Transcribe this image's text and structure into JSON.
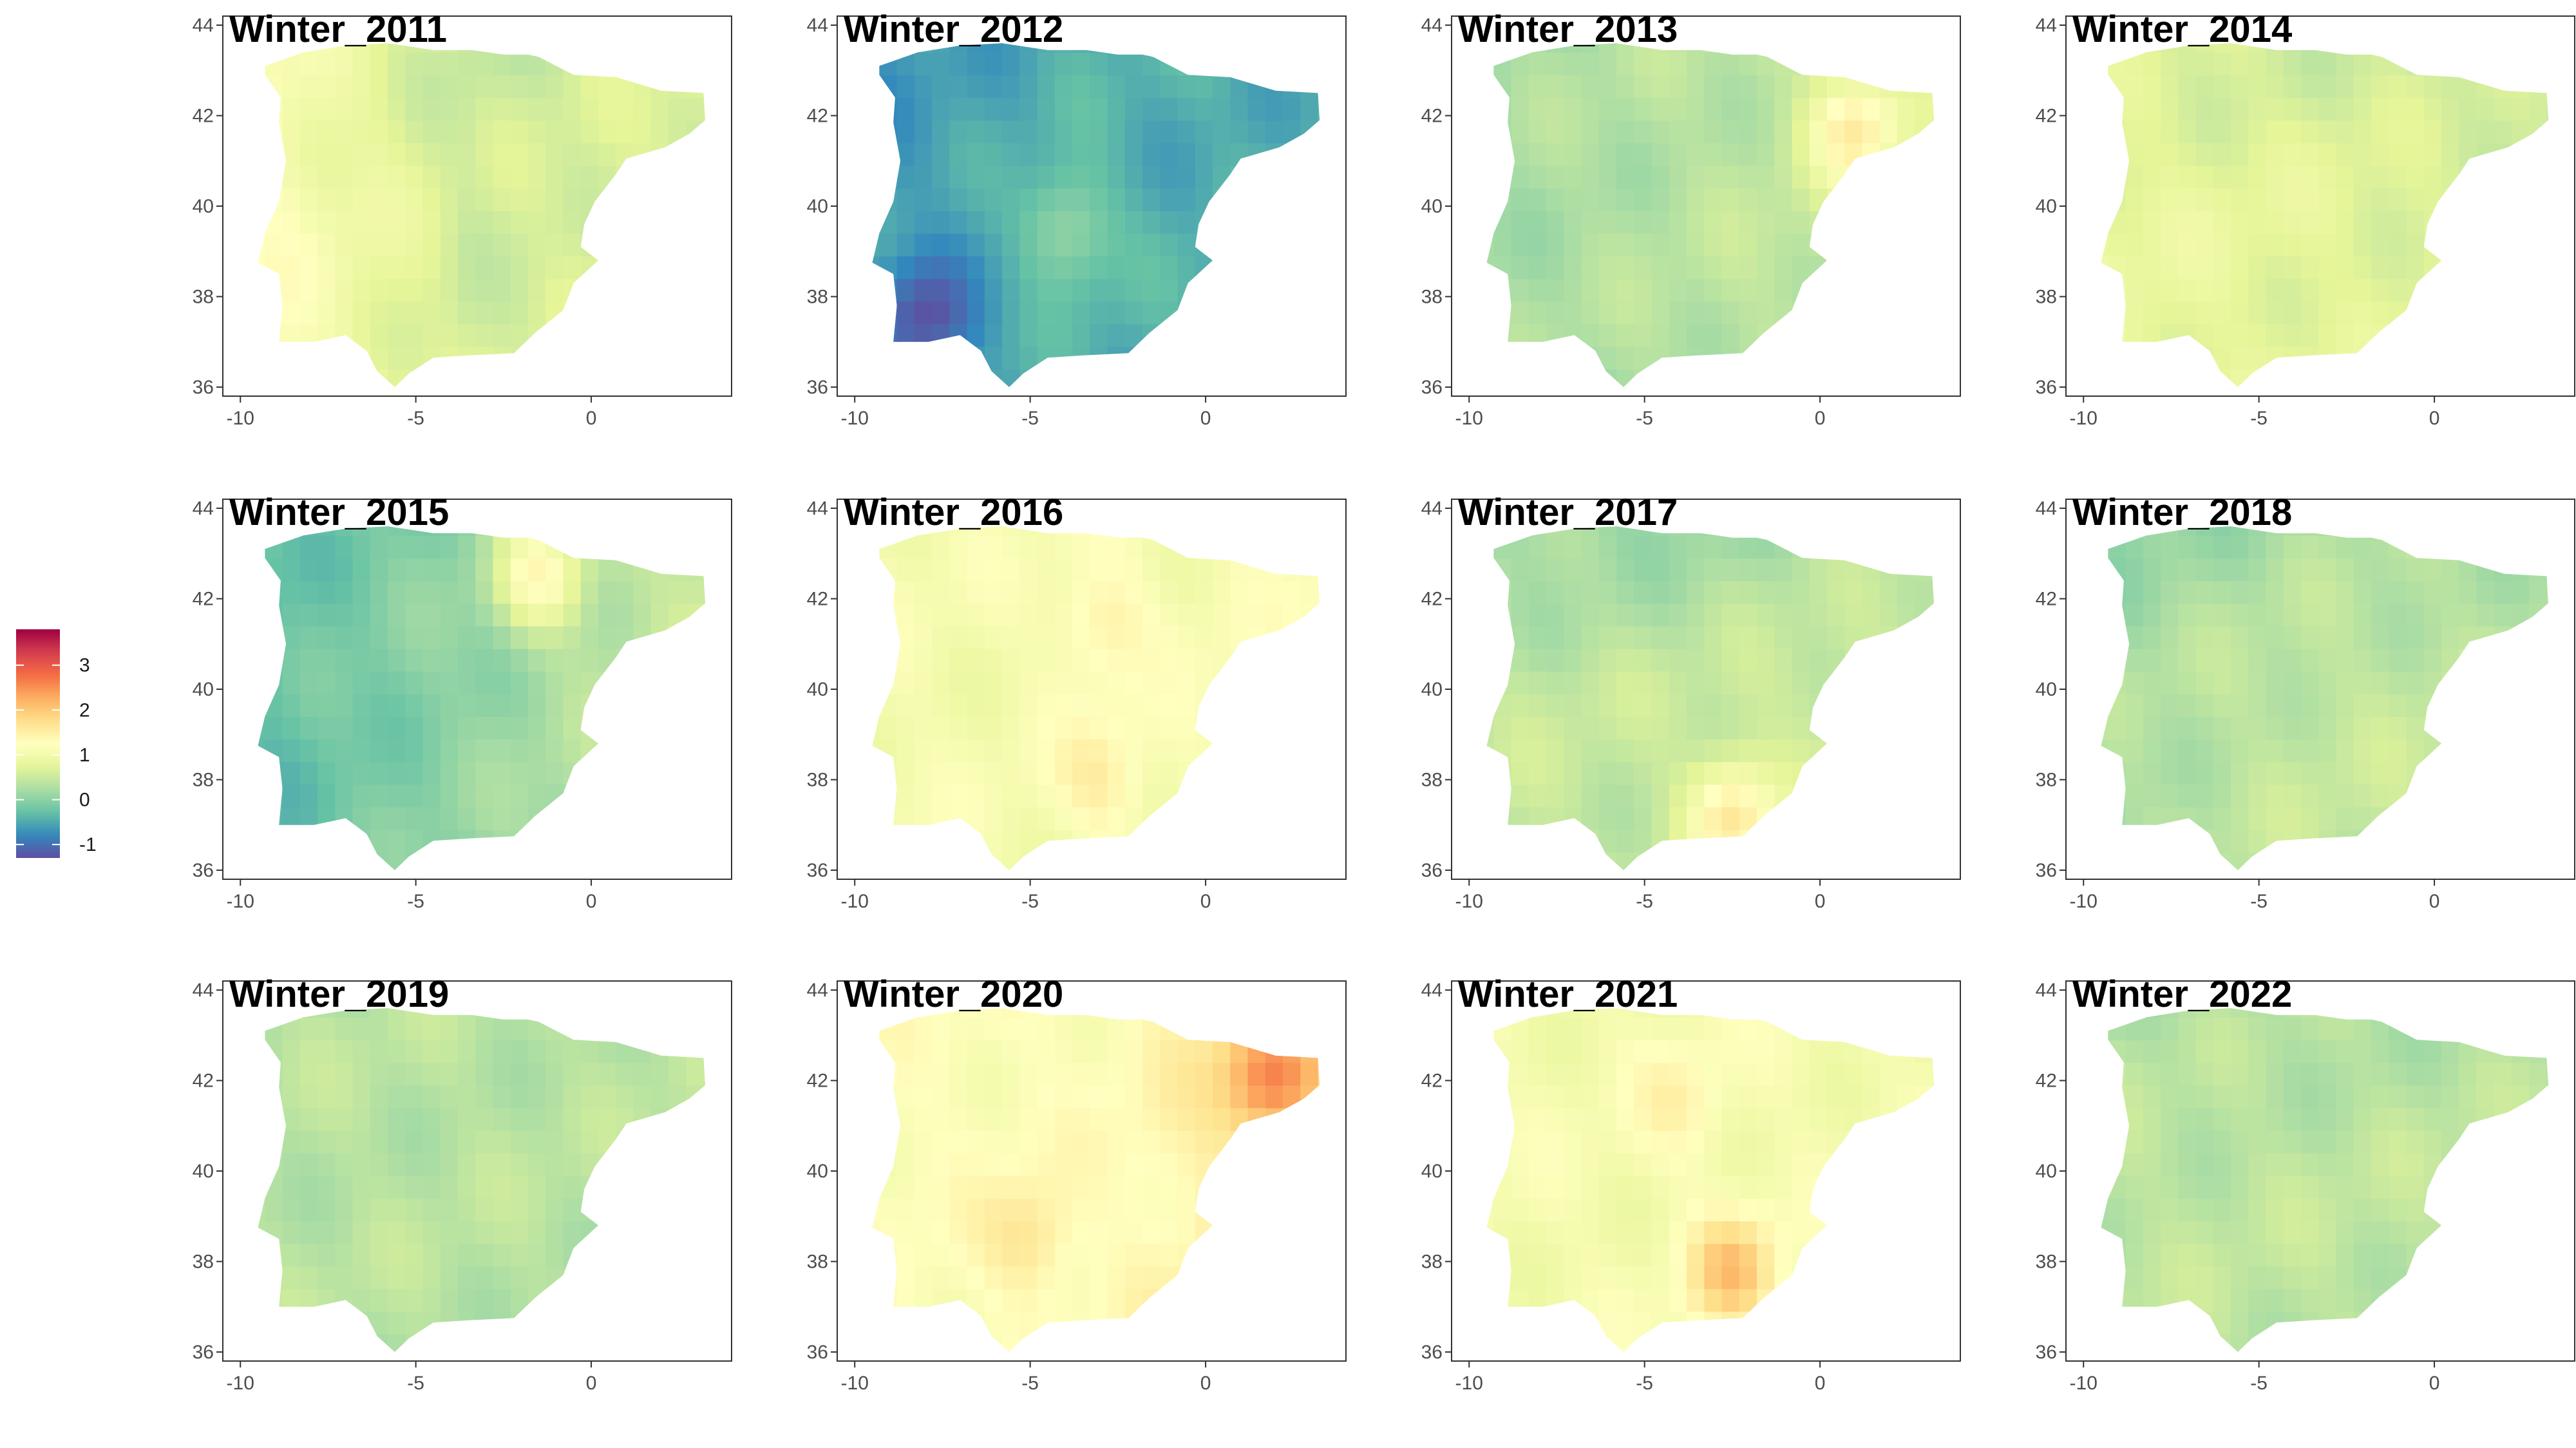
{
  "legend": {
    "title": "",
    "ticks": [
      3,
      2,
      1,
      0,
      -1
    ],
    "range": [
      -1.3,
      3.8
    ],
    "colors": [
      "#5e4fa2",
      "#3288bd",
      "#66c2a5",
      "#abdda4",
      "#e6f598",
      "#ffffbf",
      "#fee08b",
      "#fdae61",
      "#f46d43",
      "#d53e4f",
      "#9e0142"
    ]
  },
  "axes": {
    "xlim": [
      -10.5,
      4
    ],
    "ylim": [
      35.8,
      44.2
    ],
    "x_ticks": [
      "-10",
      "-5",
      "0"
    ],
    "y_ticks": [
      "44",
      "42",
      "40",
      "38",
      "36"
    ]
  },
  "chart_data": {
    "type": "heatmap",
    "region": "Iberian Peninsula",
    "panels": [
      {
        "title": "Winter_2011",
        "mean": 0.55,
        "west": 0.75,
        "east": 0.2,
        "north": -0.1,
        "spots": []
      },
      {
        "title": "Winter_2012",
        "mean": -0.45,
        "west": -0.2,
        "east": 0.0,
        "north": 0.0,
        "spots": [
          {
            "lon": -8.0,
            "lat": 37.5,
            "v": -1.1
          },
          {
            "lon": -4.0,
            "lat": 39.5,
            "v": 0.2
          }
        ]
      },
      {
        "title": "Winter_2013",
        "mean": 0.35,
        "west": -0.15,
        "east": 0.2,
        "north": 0.0,
        "spots": [
          {
            "lon": 1.0,
            "lat": 41.7,
            "v": 1.4
          }
        ]
      },
      {
        "title": "Winter_2014",
        "mean": 0.75,
        "west": 0.1,
        "east": -0.1,
        "north": -0.2,
        "spots": []
      },
      {
        "title": "Winter_2015",
        "mean": 0.05,
        "west": -0.4,
        "east": 0.5,
        "north": 0.0,
        "spots": [
          {
            "lon": -1.5,
            "lat": 42.5,
            "v": 1.1
          }
        ]
      },
      {
        "title": "Winter_2016",
        "mean": 1.05,
        "west": 0.0,
        "east": 0.1,
        "north": 0.0,
        "spots": [
          {
            "lon": -3.0,
            "lat": 41.5,
            "v": 1.5
          },
          {
            "lon": -3.0,
            "lat": 38.0,
            "v": 1.5
          }
        ]
      },
      {
        "title": "Winter_2017",
        "mean": 0.45,
        "west": 0.0,
        "east": 0.2,
        "north": -0.3,
        "spots": [
          {
            "lon": -2.5,
            "lat": 37.2,
            "v": 1.6
          }
        ]
      },
      {
        "title": "Winter_2018",
        "mean": 0.45,
        "west": -0.2,
        "east": 0.0,
        "north": -0.2,
        "spots": []
      },
      {
        "title": "Winter_2019",
        "mean": 0.35,
        "west": 0.0,
        "east": 0.0,
        "north": 0.0,
        "spots": []
      },
      {
        "title": "Winter_2020",
        "mean": 1.2,
        "west": 0.0,
        "east": 0.5,
        "north": 0.0,
        "spots": [
          {
            "lon": 1.8,
            "lat": 42.0,
            "v": 2.2
          },
          {
            "lon": -5.0,
            "lat": 38.5,
            "v": 1.7
          }
        ]
      },
      {
        "title": "Winter_2021",
        "mean": 1.05,
        "west": 0.0,
        "east": 0.0,
        "north": 0.0,
        "spots": [
          {
            "lon": -2.5,
            "lat": 37.8,
            "v": 2.0
          },
          {
            "lon": -4.0,
            "lat": 41.5,
            "v": 1.4
          }
        ]
      },
      {
        "title": "Winter_2022",
        "mean": 0.4,
        "west": 0.0,
        "east": 0.0,
        "north": -0.1,
        "spots": []
      }
    ]
  }
}
